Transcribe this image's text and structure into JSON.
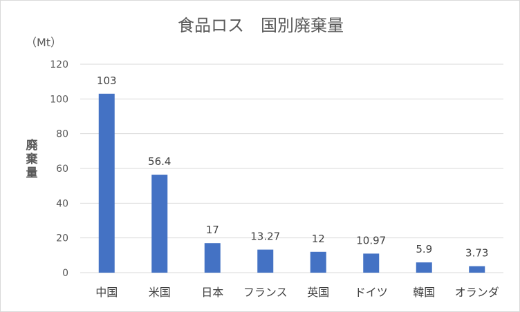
{
  "chart_data": {
    "type": "bar",
    "title": "食品ロス　国別廃棄量",
    "unit_label": "（Mt）",
    "ylabel": "廃棄量",
    "categories": [
      "中国",
      "米国",
      "日本",
      "フランス",
      "英国",
      "ドイツ",
      "韓国",
      "オランダ"
    ],
    "values": [
      103,
      56.4,
      17,
      13.27,
      12,
      10.97,
      5.9,
      3.73
    ],
    "data_labels": [
      "103",
      "56.4",
      "17",
      "13.27",
      "12",
      "10.97",
      "5.9",
      "3.73"
    ],
    "ylim": [
      0,
      120
    ],
    "yticks": [
      0,
      20,
      40,
      60,
      80,
      100,
      120
    ],
    "grid": true,
    "legend": "none",
    "bar_color": "#4472C4",
    "grid_color": "#d9d9d9"
  }
}
